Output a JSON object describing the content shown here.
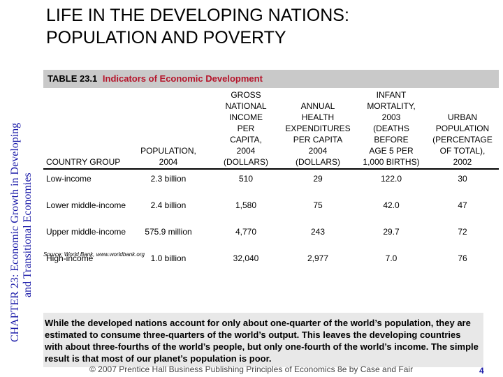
{
  "sidebar": {
    "chapter_title": "CHAPTER 23:  Economic Growth in Developing and Transitional Economies",
    "line1": "CHAPTER 23:  Economic Growth in Developing",
    "line2": "and Transitional Economies"
  },
  "header": {
    "title_line1": "LIFE IN THE DEVELOPING NATIONS:",
    "title_line2": "POPULATION AND POVERTY"
  },
  "table": {
    "number": "TABLE 23.1",
    "caption": "Indicators of Economic Development",
    "columns": [
      {
        "lines": [
          "COUNTRY GROUP"
        ]
      },
      {
        "lines": [
          "POPULATION,",
          "2004"
        ]
      },
      {
        "lines": [
          "GROSS",
          "NATIONAL",
          "INCOME",
          "PER",
          "CAPITA,",
          "2004",
          "(DOLLARS)"
        ]
      },
      {
        "lines": [
          "ANNUAL",
          "HEALTH",
          "EXPENDITURES",
          "PER CAPITA",
          "2004",
          "(DOLLARS)"
        ]
      },
      {
        "lines": [
          "INFANT",
          "MORTALITY,",
          "2003",
          "(DEATHS",
          "BEFORE",
          "AGE 5 PER",
          "1,000 BIRTHS)"
        ]
      },
      {
        "lines": [
          "URBAN",
          "POPULATION",
          "(PERCENTAGE",
          "OF TOTAL),",
          "2002"
        ]
      }
    ],
    "rows": [
      [
        "Low-income",
        "2.3 billion",
        "510",
        "29",
        "122.0",
        "30"
      ],
      [
        "Lower middle-income",
        "2.4 billion",
        "1,580",
        "75",
        "42.0",
        "47"
      ],
      [
        "Upper middle-income",
        "575.9 million",
        "4,770",
        "243",
        "29.7",
        "72"
      ],
      [
        "High-income",
        "1.0 billion",
        "32,040",
        "2,977",
        "7.0",
        "76"
      ]
    ],
    "source": "Source: World Bank, www.worldbank.org"
  },
  "note": {
    "text": "While the developed nations account for only about one-quarter of the world’s population, they are estimated to consume three-quarters of the world’s output.  This leaves the developing countries with about three-fourths of the world’s people, but only one-fourth of the world’s income.  The simple result is that most of our planet’s population is poor."
  },
  "footer": {
    "copyright": "© 2007 Prentice Hall Business Publishing   Principles of Economics 8e by Case and Fair",
    "page": "4"
  },
  "colors": {
    "sidebar_text": "#1a1aa8",
    "caption_red": "#b5152b",
    "label_bar": "#c9c9c9",
    "note_bg": "#e8e8e8"
  }
}
